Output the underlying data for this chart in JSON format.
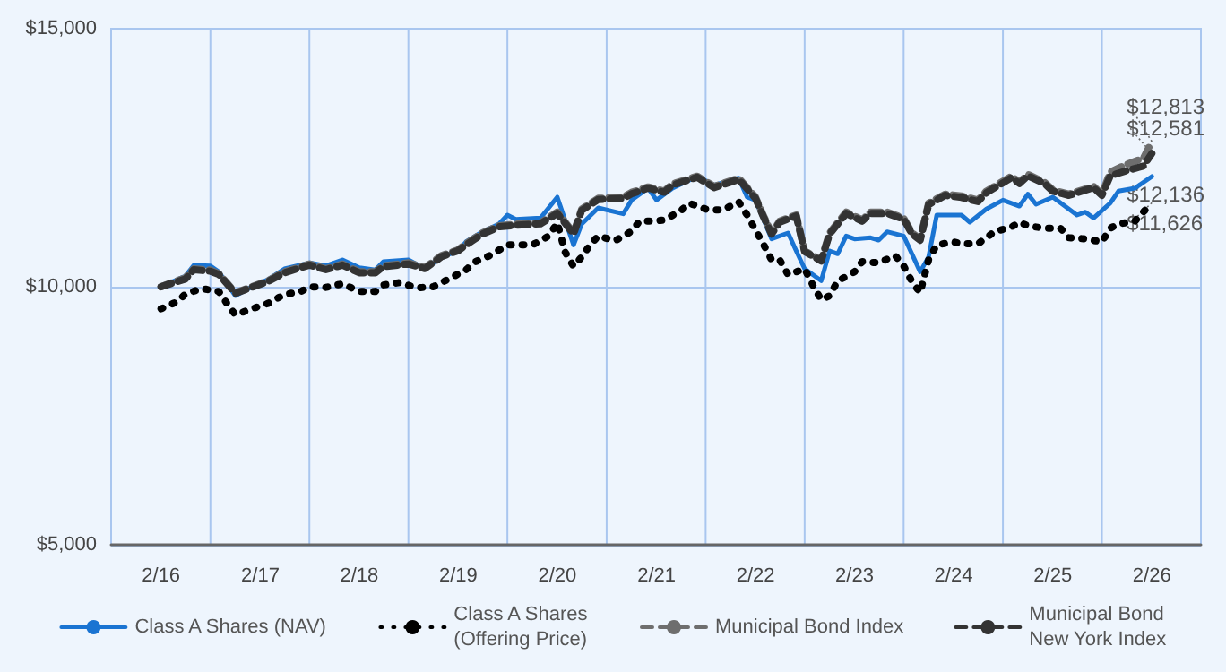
{
  "chart_data": {
    "type": "line",
    "xlim": [
      "2015-08",
      "2026-08"
    ],
    "xticks": [
      {
        "value": "2016-02",
        "label": "2/16"
      },
      {
        "value": "2016-08",
        "label": null
      },
      {
        "value": "2017-02",
        "label": "2/17"
      },
      {
        "value": "2017-08",
        "label": null
      },
      {
        "value": "2018-02",
        "label": "2/18"
      },
      {
        "value": "2018-08",
        "label": null
      },
      {
        "value": "2019-02",
        "label": "2/19"
      },
      {
        "value": "2019-08",
        "label": null
      },
      {
        "value": "2020-02",
        "label": "2/20"
      },
      {
        "value": "2020-08",
        "label": null
      },
      {
        "value": "2021-02",
        "label": "2/21"
      },
      {
        "value": "2021-08",
        "label": null
      },
      {
        "value": "2022-02",
        "label": "2/22"
      },
      {
        "value": "2022-08",
        "label": null
      },
      {
        "value": "2023-02",
        "label": "2/23"
      },
      {
        "value": "2023-08",
        "label": null
      },
      {
        "value": "2024-02",
        "label": "2/24"
      },
      {
        "value": "2024-08",
        "label": null
      },
      {
        "value": "2025-02",
        "label": "2/25"
      },
      {
        "value": "2025-08",
        "label": null
      },
      {
        "value": "2026-02",
        "label": "2/26"
      }
    ],
    "ylim": [
      5000,
      15000
    ],
    "yticks": [
      {
        "value": 5000,
        "label": "$5,000"
      },
      {
        "value": 10000,
        "label": "$10,000"
      },
      {
        "value": 15000,
        "label": "$15,000"
      }
    ],
    "grid": true,
    "legend": "bottom",
    "marker": "none",
    "series": [
      {
        "name": "Class A Shares (NAV)",
        "color": "#1a74d2",
        "line_style": "solid",
        "x": [
          "2016-02",
          "2016-05",
          "2016-06",
          "2016-08",
          "2016-09",
          "2016-11",
          "2017-01",
          "2017-03",
          "2017-05",
          "2017-08",
          "2017-10",
          "2017-12",
          "2018-02",
          "2018-04",
          "2018-05",
          "2018-08",
          "2018-10",
          "2018-12",
          "2019-02",
          "2019-03",
          "2019-05",
          "2019-07",
          "2019-08",
          "2019-09",
          "2019-12",
          "2020-02",
          "2020-04",
          "2020-05",
          "2020-07",
          "2020-10",
          "2020-11",
          "2021-01",
          "2021-02",
          "2021-04",
          "2021-07",
          "2021-09",
          "2021-12",
          "2022-01",
          "2022-02",
          "2022-04",
          "2022-06",
          "2022-07",
          "2022-08",
          "2022-10",
          "2022-11",
          "2022-12",
          "2023-01",
          "2023-02",
          "2023-04",
          "2023-05",
          "2023-06",
          "2023-08",
          "2023-10",
          "2023-11",
          "2023-12",
          "2024-03",
          "2024-04",
          "2024-06",
          "2024-08",
          "2024-10",
          "2024-11",
          "2024-12",
          "2025-02",
          "2025-05",
          "2025-06",
          "2025-07",
          "2025-09",
          "2025-10",
          "2025-12",
          "2026-02"
        ],
        "values": [
          10000,
          10208,
          10417,
          10405,
          10289,
          9826,
          10000,
          10139,
          10347,
          10463,
          10405,
          10521,
          10370,
          10324,
          10486,
          10521,
          10347,
          10579,
          10694,
          10868,
          11065,
          11215,
          11389,
          11308,
          11331,
          11736,
          10810,
          11215,
          11528,
          11412,
          11678,
          11910,
          11678,
          11910,
          12141,
          11968,
          12106,
          11736,
          11678,
          10926,
          11042,
          10694,
          10347,
          10116,
          10694,
          10637,
          10984,
          10926,
          10949,
          10903,
          11065,
          10984,
          10289,
          10579,
          11389,
          11389,
          11250,
          11505,
          11678,
          11562,
          11794,
          11597,
          11736,
          11389,
          11447,
          11331,
          11620,
          11852,
          11910,
          12136
        ]
      },
      {
        "name": "Class A Shares (Offering Price)",
        "color": "#000000",
        "line_style": "dotted",
        "x": [
          "2016-02",
          "2016-04",
          "2016-05",
          "2016-07",
          "2016-09",
          "2016-10",
          "2016-11",
          "2017-01",
          "2017-03",
          "2017-05",
          "2017-07",
          "2017-08",
          "2017-10",
          "2017-12",
          "2018-02",
          "2018-04",
          "2018-05",
          "2018-07",
          "2018-09",
          "2018-11",
          "2019-01",
          "2019-03",
          "2019-04",
          "2019-06",
          "2019-08",
          "2019-09",
          "2019-11",
          "2020-01",
          "2020-02",
          "2020-03",
          "2020-04",
          "2020-05",
          "2020-06",
          "2020-07",
          "2020-09",
          "2020-11",
          "2020-12",
          "2021-02",
          "2021-03",
          "2021-05",
          "2021-06",
          "2021-08",
          "2021-10",
          "2021-12",
          "2022-01",
          "2022-03",
          "2022-04",
          "2022-05",
          "2022-06",
          "2022-08",
          "2022-09",
          "2022-10",
          "2022-11",
          "2022-12",
          "2023-01",
          "2023-02",
          "2023-03",
          "2023-05",
          "2023-07",
          "2023-08",
          "2023-09",
          "2023-10",
          "2023-11",
          "2023-12",
          "2024-02",
          "2024-03",
          "2024-05",
          "2024-07",
          "2024-09",
          "2024-10",
          "2024-11",
          "2025-01",
          "2025-03",
          "2025-04",
          "2025-06",
          "2025-08",
          "2025-09",
          "2025-10",
          "2025-12",
          "2026-02"
        ],
        "values": [
          9572,
          9711,
          9861,
          9965,
          9907,
          9676,
          9456,
          9572,
          9676,
          9850,
          9907,
          10000,
          9988,
          10058,
          9907,
          9907,
          10035,
          10081,
          9977,
          10000,
          10162,
          10324,
          10475,
          10613,
          10810,
          10810,
          10810,
          10984,
          11238,
          10671,
          10394,
          10579,
          10810,
          10984,
          10891,
          11076,
          11273,
          11273,
          11296,
          11470,
          11620,
          11505,
          11482,
          11644,
          11389,
          10833,
          10521,
          10521,
          10231,
          10347,
          10023,
          9745,
          9826,
          10116,
          10197,
          10289,
          10486,
          10463,
          10602,
          10405,
          10093,
          9884,
          10521,
          10810,
          10868,
          10833,
          10833,
          11065,
          11157,
          11250,
          11180,
          11134,
          11134,
          10949,
          10926,
          10868,
          11134,
          11215,
          11273,
          11626
        ]
      },
      {
        "name": "Municipal Bond Index",
        "color": "#6e6e6e",
        "line_style": "dashed",
        "x": [
          "2016-02",
          "2016-05",
          "2016-06",
          "2016-08",
          "2016-09",
          "2016-11",
          "2017-01",
          "2017-03",
          "2017-05",
          "2017-08",
          "2017-10",
          "2017-12",
          "2018-02",
          "2018-04",
          "2018-05",
          "2018-08",
          "2018-10",
          "2018-12",
          "2019-02",
          "2019-03",
          "2019-05",
          "2019-07",
          "2019-09",
          "2019-12",
          "2020-02",
          "2020-04",
          "2020-05",
          "2020-07",
          "2020-10",
          "2020-11",
          "2021-01",
          "2021-03",
          "2021-04",
          "2021-07",
          "2021-09",
          "2021-12",
          "2022-02",
          "2022-03",
          "2022-04",
          "2022-05",
          "2022-07",
          "2022-08",
          "2022-10",
          "2022-11",
          "2023-01",
          "2023-03",
          "2023-04",
          "2023-06",
          "2023-08",
          "2023-09",
          "2023-10",
          "2023-11",
          "2024-01",
          "2024-03",
          "2024-05",
          "2024-06",
          "2024-09",
          "2024-10",
          "2024-11",
          "2025-01",
          "2025-02",
          "2025-04",
          "2025-07",
          "2025-08",
          "2025-09",
          "2025-11",
          "2026-01",
          "2026-02"
        ],
        "values": [
          10000,
          10174,
          10347,
          10324,
          10255,
          9884,
          10000,
          10116,
          10289,
          10440,
          10347,
          10440,
          10289,
          10289,
          10405,
          10463,
          10370,
          10602,
          10718,
          10833,
          11042,
          11180,
          11215,
          11238,
          11447,
          11042,
          11505,
          11713,
          11736,
          11829,
          11933,
          11852,
          11991,
          12141,
          11944,
          12106,
          11736,
          11389,
          11042,
          11273,
          11389,
          10694,
          10521,
          11042,
          11447,
          11296,
          11447,
          11447,
          11331,
          11042,
          10926,
          11620,
          11794,
          11759,
          11678,
          11852,
          12141,
          12025,
          12176,
          12025,
          11875,
          11794,
          11944,
          11794,
          12222,
          12373,
          12488,
          12813
        ]
      },
      {
        "name": "Municipal Bond New York Index",
        "color": "#333333",
        "line_style": "dashed",
        "x": [
          "2016-02",
          "2016-05",
          "2016-06",
          "2016-08",
          "2016-09",
          "2016-11",
          "2017-01",
          "2017-03",
          "2017-05",
          "2017-08",
          "2017-10",
          "2017-12",
          "2018-02",
          "2018-04",
          "2018-05",
          "2018-08",
          "2018-10",
          "2018-12",
          "2019-02",
          "2019-03",
          "2019-05",
          "2019-07",
          "2019-09",
          "2019-12",
          "2020-02",
          "2020-04",
          "2020-05",
          "2020-07",
          "2020-10",
          "2020-11",
          "2021-01",
          "2021-03",
          "2021-04",
          "2021-07",
          "2021-09",
          "2021-12",
          "2022-02",
          "2022-03",
          "2022-04",
          "2022-05",
          "2022-07",
          "2022-08",
          "2022-10",
          "2022-11",
          "2023-01",
          "2023-03",
          "2023-04",
          "2023-06",
          "2023-08",
          "2023-09",
          "2023-10",
          "2023-11",
          "2024-01",
          "2024-03",
          "2024-05",
          "2024-06",
          "2024-09",
          "2024-10",
          "2024-11",
          "2025-01",
          "2025-02",
          "2025-04",
          "2025-07",
          "2025-08",
          "2025-09",
          "2025-11",
          "2026-01",
          "2026-02"
        ],
        "values": [
          10000,
          10150,
          10330,
          10300,
          10240,
          9870,
          9990,
          10100,
          10270,
          10420,
          10330,
          10420,
          10270,
          10270,
          10390,
          10440,
          10350,
          10580,
          10700,
          10810,
          11020,
          11160,
          11190,
          11220,
          11420,
          11020,
          11480,
          11690,
          11710,
          11800,
          11910,
          11830,
          11970,
          12120,
          11920,
          12080,
          11710,
          11370,
          11020,
          11250,
          11370,
          10680,
          10500,
          11020,
          11420,
          11270,
          11420,
          11420,
          11310,
          11020,
          10900,
          11590,
          11770,
          11730,
          11650,
          11820,
          12110,
          12000,
          12150,
          12000,
          11850,
          11770,
          11920,
          11770,
          12150,
          12250,
          12338,
          12581
        ]
      }
    ],
    "annotations": [
      {
        "text": "$12,813",
        "x": "2026-02",
        "y": 12813
      },
      {
        "text": "$12,581",
        "x": "2026-02",
        "y": 12581
      },
      {
        "text": "$12,136",
        "x": "2026-02",
        "y": 12136
      },
      {
        "text": "$11,626",
        "x": "2026-02",
        "y": 11626
      }
    ]
  }
}
